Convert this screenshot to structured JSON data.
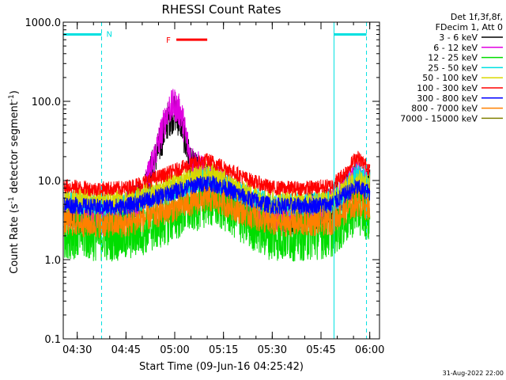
{
  "chart_data": {
    "type": "line",
    "title": "RHESSI Count Rates",
    "xlabel": "Start Time (09-Jun-16 04:25:42)",
    "ylabel_main": "Count Rate (s",
    "ylabel_sup1": "-1",
    "ylabel_mid": " detector segment",
    "ylabel_sup2": "-1",
    "ylabel_end": ")",
    "yscale": "log",
    "xlim": [
      "04:25:42",
      "06:03:00"
    ],
    "ylim": [
      0.1,
      1000
    ],
    "x_ticks": [
      "04:30",
      "04:45",
      "05:00",
      "05:15",
      "05:30",
      "05:45",
      "06:00"
    ],
    "y_ticks": [
      "0.1",
      "1.0",
      "10.0",
      "100.0",
      "1000.0"
    ],
    "legend_header": [
      "Det 1f,3f,8f,",
      "FDecim 1, Att 0"
    ],
    "legend_position": "top-right outside plot",
    "series": [
      {
        "name": "3 - 6 keV",
        "color": "#000000",
        "x": [
          "04:26",
          "04:32",
          "04:38",
          "04:44",
          "04:50",
          "04:55",
          "04:58",
          "05:00",
          "05:02",
          "05:05",
          "05:10",
          "05:16",
          "05:22",
          "05:28",
          "05:34",
          "05:40",
          "05:46",
          "05:52",
          "05:56",
          "06:00"
        ],
        "values": [
          4,
          3.6,
          3.3,
          4,
          6,
          25,
          60,
          70,
          55,
          15,
          10,
          8,
          5,
          3.5,
          3.5,
          3.8,
          4.5,
          7,
          10,
          8
        ]
      },
      {
        "name": "6 - 12 keV",
        "color": "#e000e0",
        "x": [
          "04:26",
          "04:32",
          "04:38",
          "04:44",
          "04:50",
          "04:55",
          "04:58",
          "05:00",
          "05:02",
          "05:05",
          "05:10",
          "05:16",
          "05:22",
          "05:28",
          "05:34",
          "05:40",
          "05:46",
          "05:52",
          "05:56",
          "06:00"
        ],
        "values": [
          4,
          3.6,
          3.3,
          4,
          6,
          30,
          80,
          90,
          70,
          18,
          11,
          8,
          5,
          3.5,
          3.5,
          3.8,
          4.5,
          7,
          11,
          8
        ]
      },
      {
        "name": "12 - 25 keV",
        "color": "#00dd00",
        "x": [
          "04:26",
          "04:35",
          "04:45",
          "04:55",
          "05:05",
          "05:10",
          "05:15",
          "05:22",
          "05:30",
          "05:40",
          "05:48",
          "05:52",
          "05:56",
          "06:00"
        ],
        "values": [
          2.2,
          2.0,
          2.0,
          2.8,
          4.5,
          5.5,
          4.8,
          3.0,
          2.0,
          2.0,
          2.2,
          3.0,
          4.5,
          3.5
        ]
      },
      {
        "name": "25 - 50 keV",
        "color": "#00e0e0",
        "x": [
          "04:26",
          "04:35",
          "04:45",
          "04:55",
          "05:05",
          "05:10",
          "05:15",
          "05:22",
          "05:30",
          "05:40",
          "05:48",
          "05:52",
          "05:56",
          "06:00"
        ],
        "values": [
          5.5,
          5.0,
          5.0,
          6.5,
          9.0,
          10.5,
          9.0,
          6.5,
          5.0,
          5.0,
          5.2,
          7.0,
          12,
          9
        ]
      },
      {
        "name": "50 - 100 keV",
        "color": "#d8d800",
        "x": [
          "04:26",
          "04:35",
          "04:45",
          "04:55",
          "05:05",
          "05:10",
          "05:15",
          "05:22",
          "05:30",
          "05:40",
          "05:48",
          "05:52",
          "05:56",
          "06:00"
        ],
        "values": [
          6.0,
          5.5,
          5.5,
          7.5,
          11,
          12.5,
          10,
          7,
          5.5,
          5.5,
          5.8,
          7.5,
          10,
          8.5
        ]
      },
      {
        "name": "100 - 300 keV",
        "color": "#ff0000",
        "x": [
          "04:26",
          "04:35",
          "04:45",
          "04:55",
          "05:05",
          "05:10",
          "05:15",
          "05:22",
          "05:30",
          "05:40",
          "05:48",
          "05:52",
          "05:56",
          "06:00"
        ],
        "values": [
          8.5,
          7.8,
          8.0,
          11,
          16,
          18,
          15,
          10.5,
          8.0,
          8.0,
          8.5,
          12,
          20,
          14
        ]
      },
      {
        "name": "300 - 800 keV",
        "color": "#0000ff",
        "x": [
          "04:26",
          "04:35",
          "04:45",
          "04:55",
          "05:05",
          "05:10",
          "05:15",
          "05:22",
          "05:30",
          "05:40",
          "05:48",
          "05:52",
          "05:56",
          "06:00"
        ],
        "values": [
          5.0,
          4.6,
          4.7,
          6.2,
          8.5,
          9.5,
          8.3,
          6.0,
          4.8,
          4.8,
          5.0,
          6.5,
          8.2,
          7.0
        ]
      },
      {
        "name": "800 - 7000 keV",
        "color": "#ff8000",
        "x": [
          "04:26",
          "04:35",
          "04:45",
          "04:55",
          "05:05",
          "05:10",
          "05:15",
          "05:22",
          "05:30",
          "05:40",
          "05:48",
          "05:52",
          "05:56",
          "06:00"
        ],
        "values": [
          3.0,
          2.8,
          2.8,
          3.8,
          5.2,
          6.0,
          5.2,
          3.8,
          2.9,
          2.9,
          3.0,
          4.0,
          5.2,
          4.5
        ]
      },
      {
        "name": "7000 - 15000 keV",
        "color": "#808000",
        "x": [],
        "values": []
      }
    ],
    "annotations": {
      "night_marks": [
        {
          "label": "N",
          "from": "04:25:42",
          "to": "04:37:30",
          "color": "#00e0e0",
          "level": 700
        }
      ],
      "night_segment_2": {
        "from": "05:49:00",
        "to": "05:59:00",
        "level": 700
      },
      "flare_mark": {
        "label": "F",
        "from": "05:00:30",
        "to": "05:10:00",
        "color": "#ff0000",
        "level": 600
      },
      "vertical_lines": [
        {
          "time": "04:25:42",
          "style": "solid",
          "color": "#00e0e0"
        },
        {
          "time": "04:37:30",
          "style": "dashed",
          "color": "#00e0e0"
        },
        {
          "time": "05:49:00",
          "style": "solid",
          "color": "#00e0e0"
        },
        {
          "time": "05:59:00",
          "style": "dashed",
          "color": "#00e0e0"
        }
      ]
    }
  },
  "footer_date": "31-Aug-2022 22:00"
}
